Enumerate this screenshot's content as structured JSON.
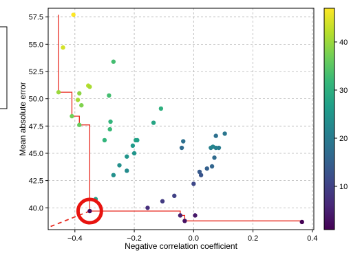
{
  "chart_data": {
    "type": "scatter",
    "xlabel": "Negative correlation coefficient",
    "ylabel": "Mean absolute error",
    "xlim": [
      -0.49,
      0.405
    ],
    "ylim": [
      38.0,
      58.3
    ],
    "x_ticks": [
      -0.4,
      -0.2,
      0.0,
      0.2,
      0.4
    ],
    "x_tick_labels": [
      "−0.4",
      "−0.2",
      "0.0",
      "0.2",
      "0.4"
    ],
    "y_ticks": [
      40.0,
      42.5,
      45.0,
      47.5,
      50.0,
      52.5,
      55.0,
      57.5
    ],
    "y_tick_labels": [
      "40.0",
      "42.5",
      "45.0",
      "47.5",
      "50.0",
      "52.5",
      "55.0",
      "57.5"
    ],
    "grid": true,
    "colormap": "viridis",
    "colorbar": {
      "range": [
        1,
        47
      ],
      "ticks": [
        10,
        20,
        30,
        40
      ],
      "tick_labels": [
        "10",
        "20",
        "30",
        "40"
      ]
    },
    "colormap_stops": [
      "#440154",
      "#482878",
      "#3e4989",
      "#31688e",
      "#26828e",
      "#1f9e89",
      "#35b779",
      "#6ece58",
      "#b5de2b",
      "#fde725"
    ],
    "points": [
      {
        "x": -0.405,
        "y": 57.7,
        "c": 47
      },
      {
        "x": -0.44,
        "y": 54.7,
        "c": 44
      },
      {
        "x": -0.455,
        "y": 50.6,
        "c": 40
      },
      {
        "x": -0.355,
        "y": 51.2,
        "c": 42
      },
      {
        "x": -0.35,
        "y": 51.1,
        "c": 41
      },
      {
        "x": -0.385,
        "y": 50.5,
        "c": 39
      },
      {
        "x": -0.39,
        "y": 49.9,
        "c": 41
      },
      {
        "x": -0.378,
        "y": 49.4,
        "c": 38
      },
      {
        "x": -0.41,
        "y": 48.4,
        "c": 37
      },
      {
        "x": -0.385,
        "y": 47.6,
        "c": 36
      },
      {
        "x": -0.27,
        "y": 53.4,
        "c": 33
      },
      {
        "x": -0.285,
        "y": 50.3,
        "c": 33
      },
      {
        "x": -0.28,
        "y": 47.9,
        "c": 31
      },
      {
        "x": -0.282,
        "y": 47.2,
        "c": 32
      },
      {
        "x": -0.3,
        "y": 46.2,
        "c": 31
      },
      {
        "x": -0.11,
        "y": 49.1,
        "c": 30
      },
      {
        "x": -0.135,
        "y": 47.8,
        "c": 28
      },
      {
        "x": -0.195,
        "y": 46.2,
        "c": 28
      },
      {
        "x": -0.19,
        "y": 46.2,
        "c": 27
      },
      {
        "x": -0.205,
        "y": 45.7,
        "c": 26
      },
      {
        "x": -0.2,
        "y": 45.0,
        "c": 25
      },
      {
        "x": -0.225,
        "y": 44.7,
        "c": 25
      },
      {
        "x": -0.25,
        "y": 43.9,
        "c": 24
      },
      {
        "x": -0.225,
        "y": 43.4,
        "c": 23
      },
      {
        "x": -0.27,
        "y": 43.0,
        "c": 24
      },
      {
        "x": -0.33,
        "y": 40.8,
        "c": 27
      },
      {
        "x": -0.035,
        "y": 46.1,
        "c": 18
      },
      {
        "x": -0.04,
        "y": 45.5,
        "c": 17
      },
      {
        "x": 0.058,
        "y": 45.5,
        "c": 21
      },
      {
        "x": 0.065,
        "y": 45.6,
        "c": 22
      },
      {
        "x": 0.075,
        "y": 45.5,
        "c": 21
      },
      {
        "x": 0.085,
        "y": 45.5,
        "c": 20
      },
      {
        "x": 0.105,
        "y": 46.8,
        "c": 19
      },
      {
        "x": 0.075,
        "y": 46.6,
        "c": 18
      },
      {
        "x": 0.07,
        "y": 44.6,
        "c": 17
      },
      {
        "x": 0.062,
        "y": 43.8,
        "c": 16
      },
      {
        "x": 0.045,
        "y": 43.6,
        "c": 15
      },
      {
        "x": 0.02,
        "y": 43.3,
        "c": 14
      },
      {
        "x": 0.025,
        "y": 43.0,
        "c": 13
      },
      {
        "x": 0.0,
        "y": 42.2,
        "c": 11
      },
      {
        "x": -0.065,
        "y": 41.1,
        "c": 10
      },
      {
        "x": -0.105,
        "y": 40.6,
        "c": 9
      },
      {
        "x": -0.155,
        "y": 40.0,
        "c": 7
      },
      {
        "x": -0.045,
        "y": 39.3,
        "c": 5
      },
      {
        "x": 0.005,
        "y": 39.3,
        "c": 4
      },
      {
        "x": -0.03,
        "y": 38.8,
        "c": 3
      },
      {
        "x": 0.365,
        "y": 38.7,
        "c": 1
      },
      {
        "x": -0.35,
        "y": 39.7,
        "c": 2
      }
    ],
    "pareto_front": [
      {
        "x": -0.455,
        "y": 57.7
      },
      {
        "x": -0.455,
        "y": 50.6
      },
      {
        "x": -0.41,
        "y": 50.6
      },
      {
        "x": -0.41,
        "y": 48.4
      },
      {
        "x": -0.385,
        "y": 48.4
      },
      {
        "x": -0.385,
        "y": 47.6
      },
      {
        "x": -0.35,
        "y": 47.6
      },
      {
        "x": -0.35,
        "y": 39.7
      },
      {
        "x": -0.045,
        "y": 39.7
      },
      {
        "x": -0.045,
        "y": 39.3
      },
      {
        "x": -0.03,
        "y": 39.3
      },
      {
        "x": -0.03,
        "y": 38.8
      },
      {
        "x": 0.365,
        "y": 38.8
      }
    ],
    "pareto_color": "#e8281e",
    "extension": [
      {
        "x": -0.35,
        "y": 39.7
      },
      {
        "x": -0.49,
        "y": 38.2
      }
    ],
    "highlight": {
      "x": -0.35,
      "y": 39.7,
      "color": "#e8130f"
    }
  }
}
